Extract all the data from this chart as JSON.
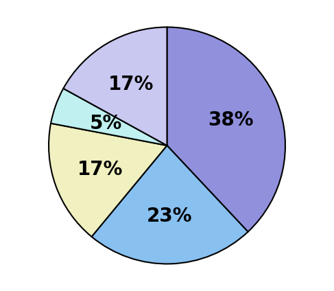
{
  "slices": [
    38,
    23,
    17,
    5,
    17
  ],
  "colors": [
    "#9090dd",
    "#88c0f0",
    "#f0f0c0",
    "#c0f0f0",
    "#c8c8f0"
  ],
  "labels": [
    "38%",
    "23%",
    "17%",
    "5%",
    "17%"
  ],
  "label_radii": [
    0.58,
    0.6,
    0.6,
    0.55,
    0.6
  ],
  "startangle": 90,
  "background_color": "#ffffff",
  "text_fontsize": 20,
  "text_fontweight": "bold",
  "edge_color": "#000000",
  "edge_linewidth": 1.5
}
